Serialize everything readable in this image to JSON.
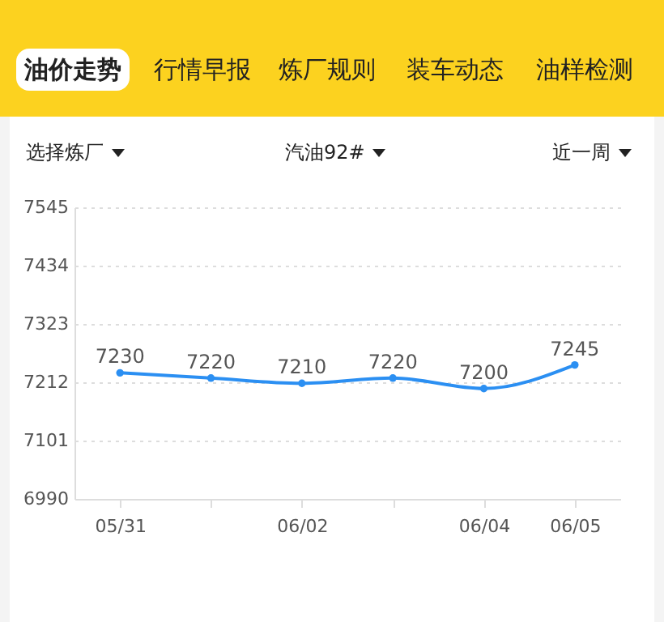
{
  "chart_data": {
    "type": "line",
    "categories": [
      "05/31",
      null,
      "06/02",
      null,
      "06/04",
      "06/05"
    ],
    "series": [
      {
        "color": "#2b8ff2",
        "values": [
          7230,
          7220,
          7210,
          7220,
          7200,
          7245
        ]
      }
    ],
    "ylim": [
      6990,
      7545
    ],
    "yticks": [
      6990,
      7101,
      7212,
      7323,
      7434,
      7545
    ],
    "grid": "y",
    "marker": "circle",
    "line_style": "solid",
    "data_labels": true,
    "legend": false,
    "annotations": [
      "油价走势",
      "行情早报",
      "炼厂规则",
      "装车动态",
      "油样检测",
      "选择炼厂",
      "汽油92#",
      "近一周"
    ]
  }
}
